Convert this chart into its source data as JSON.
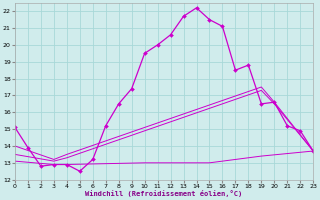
{
  "background_color": "#d0ecec",
  "grid_color": "#a8d8d8",
  "line_color": "#cc00cc",
  "xlim": [
    0,
    23
  ],
  "ylim": [
    12,
    22.5
  ],
  "yticks": [
    12,
    13,
    14,
    15,
    16,
    17,
    18,
    19,
    20,
    21,
    22
  ],
  "xticks": [
    0,
    1,
    2,
    3,
    4,
    5,
    6,
    7,
    8,
    9,
    10,
    11,
    12,
    13,
    14,
    15,
    16,
    17,
    18,
    19,
    20,
    21,
    22,
    23
  ],
  "xlabel": "Windchill (Refroidissement éolien,°C)",
  "line1_x": [
    0,
    1,
    2,
    3,
    4,
    5,
    6,
    7,
    8,
    9,
    10,
    11,
    12,
    13,
    14,
    15,
    16,
    17,
    18,
    19,
    20,
    21,
    22,
    23
  ],
  "line1_y": [
    15.1,
    13.9,
    12.8,
    12.9,
    12.9,
    12.5,
    13.2,
    15.2,
    16.5,
    17.4,
    19.5,
    20.0,
    20.6,
    21.7,
    22.2,
    21.5,
    21.1,
    18.5,
    18.8,
    16.5,
    16.6,
    15.2,
    14.9,
    13.7
  ],
  "line2_x": [
    0,
    3,
    4,
    10,
    11,
    12,
    13,
    14,
    15,
    16,
    17,
    18,
    19,
    23
  ],
  "line2_y": [
    13.1,
    12.9,
    12.9,
    13.0,
    13.0,
    13.0,
    13.0,
    13.0,
    13.0,
    13.1,
    13.2,
    13.3,
    13.4,
    13.7
  ],
  "line3_x": [
    0,
    3,
    4,
    19,
    20,
    23
  ],
  "line3_y": [
    13.5,
    13.1,
    13.3,
    17.3,
    16.5,
    13.7
  ],
  "line4_x": [
    0,
    3,
    4,
    19,
    20,
    23
  ],
  "line4_y": [
    14.0,
    13.2,
    13.5,
    17.5,
    16.6,
    13.7
  ]
}
